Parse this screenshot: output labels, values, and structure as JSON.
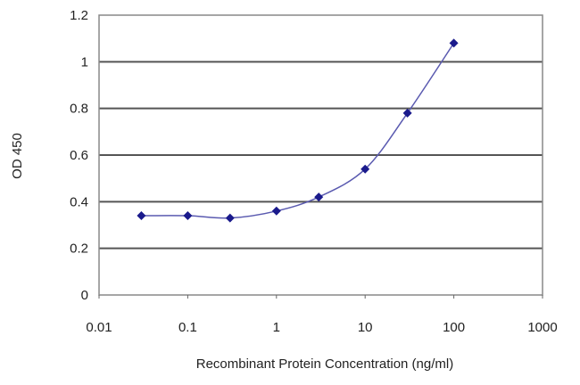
{
  "chart_data": {
    "type": "line",
    "title": "",
    "xlabel": "Recombinant Protein Concentration (ng/ml)",
    "ylabel": "OD 450",
    "x_scale": "log",
    "xlim": [
      0.01,
      1000
    ],
    "ylim": [
      0,
      1.2
    ],
    "x_ticks": [
      "0.01",
      "0.1",
      "1",
      "10",
      "100",
      "1000"
    ],
    "y_ticks": [
      "0",
      "0.2",
      "0.4",
      "0.6",
      "0.8",
      "1",
      "1.2"
    ],
    "grid": "horizontal",
    "legend": "none",
    "series": [
      {
        "x": [
          0.03,
          0.1,
          0.3,
          1,
          3,
          10,
          30,
          100
        ],
        "y": [
          0.34,
          0.34,
          0.33,
          0.36,
          0.42,
          0.54,
          0.78,
          1.08
        ],
        "color": "#1a1a8c",
        "marker": "diamond"
      }
    ]
  }
}
